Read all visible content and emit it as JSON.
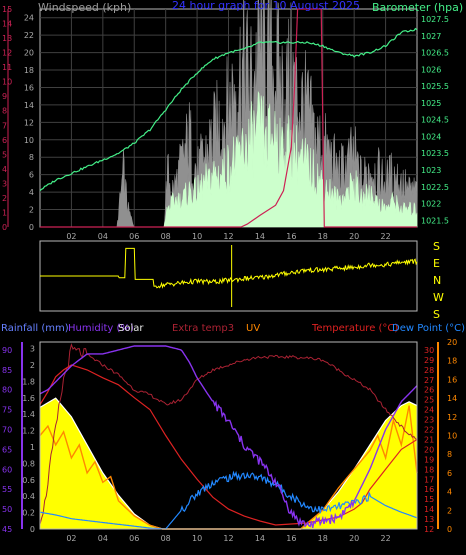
{
  "colors": {
    "background": "#000000",
    "frame": "#b8b8b8",
    "grid": "#404040",
    "wind_gust": "#909090",
    "wind_avg": "#ccffcc",
    "barometer": "#44ee88",
    "wind_dir": "#ffff00",
    "rain_axis": "#cc2255",
    "humidity": "#8833ee",
    "uv": "#ff8800",
    "temperature": "#dd2222",
    "dew_point": "#2288ff",
    "solar_fill": "#ffff00",
    "solar_max": "#ffffff",
    "extra_temp": "#aa2233",
    "title": "#3333ff",
    "tick_text": "#a8a8a8"
  },
  "chart_data": [
    {
      "id": "wind_baro",
      "type": "line",
      "title": "24 hour graph for  10 August 2025",
      "labels": {
        "wind": "Windspeed (kph)",
        "barometer": "Barometer (hpa)"
      },
      "x_ticks": [
        "02",
        "04",
        "06",
        "08",
        "10",
        "12",
        "14",
        "16",
        "18",
        "20",
        "22"
      ],
      "xlim": [
        0,
        24
      ],
      "y_left_ticks": [
        0,
        2,
        4,
        6,
        8,
        10,
        12,
        14,
        16,
        18,
        20,
        22,
        24
      ],
      "y_left_lim": [
        0,
        25
      ],
      "y_rain_ticks": [
        0,
        1,
        2,
        3,
        4,
        5,
        6,
        7,
        8,
        9,
        10,
        11,
        12,
        13,
        14,
        15
      ],
      "y_rain_lim": [
        0,
        15
      ],
      "y_right_ticks": [
        1021.5,
        1022,
        1022.5,
        1023,
        1023.5,
        1024,
        1024.5,
        1025,
        1025.5,
        1026,
        1026.5,
        1027,
        1027.5
      ],
      "y_right_lim": [
        1021.3,
        1027.8
      ],
      "series": [
        {
          "name": "Barometer",
          "axis": "right",
          "x": [
            0,
            1,
            2,
            3,
            4,
            5,
            6,
            7,
            8,
            9,
            10,
            11,
            12,
            13,
            14,
            15,
            16,
            17,
            18,
            19,
            20,
            21,
            22,
            23,
            24
          ],
          "values": [
            1022.4,
            1022.7,
            1022.9,
            1023.1,
            1023.3,
            1023.5,
            1023.8,
            1024.2,
            1024.8,
            1025.4,
            1025.9,
            1026.3,
            1026.5,
            1026.6,
            1026.8,
            1026.8,
            1026.8,
            1026.8,
            1026.7,
            1026.5,
            1026.4,
            1026.5,
            1026.7,
            1027.1,
            1027.2
          ]
        },
        {
          "name": "Gust",
          "axis": "left",
          "x": [
            0,
            4.9,
            5.3,
            5.6,
            6,
            7.9,
            8.1,
            8.5,
            9,
            9.5,
            10,
            10.5,
            11,
            11.5,
            12,
            12.5,
            13,
            13.5,
            14,
            14.5,
            15,
            15.5,
            16,
            16.5,
            17,
            17.5,
            18,
            18.5,
            19,
            19.5,
            20,
            20.5,
            21,
            21.5,
            22,
            22.5,
            23,
            23.5,
            24
          ],
          "values": [
            0,
            0,
            6,
            2,
            0,
            0,
            6,
            4,
            7,
            10,
            6,
            8,
            10,
            12,
            13,
            17,
            18,
            16,
            20,
            19,
            18,
            15,
            17,
            14,
            13,
            10,
            9,
            8,
            6,
            7,
            8,
            5,
            7,
            6,
            5,
            6,
            5,
            4,
            4
          ]
        },
        {
          "name": "Average",
          "axis": "left",
          "x": [
            0,
            7.9,
            8.1,
            8.5,
            9,
            9.5,
            10,
            10.5,
            11,
            11.5,
            12,
            12.5,
            13,
            13.5,
            14,
            14.5,
            15,
            15.5,
            16,
            16.5,
            17,
            17.5,
            18,
            18.5,
            19,
            19.5,
            20,
            20.5,
            21,
            21.5,
            22,
            22.5,
            23,
            23.5,
            24
          ],
          "values": [
            0,
            0,
            2,
            3,
            3,
            4,
            4,
            5,
            6,
            6,
            7,
            8,
            9,
            10,
            11,
            10,
            11,
            9,
            9,
            8,
            7,
            6,
            5,
            4,
            3,
            4,
            5,
            3,
            4,
            3,
            2,
            3,
            2,
            2,
            2
          ]
        },
        {
          "name": "Rainfall",
          "axis": "rain",
          "x": [
            0,
            12.8,
            13.2,
            14,
            15,
            15.5,
            16,
            16.2,
            16.4,
            17.9,
            18.1,
            24
          ],
          "values": [
            0,
            0,
            0.2,
            0.8,
            1.5,
            2.5,
            5.5,
            9.5,
            15,
            15,
            0,
            0
          ]
        }
      ]
    },
    {
      "id": "wind_direction",
      "type": "line",
      "compass_labels": [
        "S",
        "E",
        "N",
        "W",
        "S"
      ],
      "ylim": [
        0,
        360
      ],
      "xlim": [
        0,
        24
      ],
      "series": [
        {
          "name": "Direction",
          "x": [
            0,
            5.0,
            5.01,
            5.4,
            5.41,
            6.0,
            6.01,
            7.2,
            7.21,
            8,
            9,
            10,
            11,
            12,
            13,
            14,
            15,
            16,
            17,
            18,
            19,
            20,
            21,
            22,
            23,
            24
          ],
          "values": [
            180,
            180,
            170,
            170,
            340,
            340,
            160,
            160,
            120,
            130,
            140,
            150,
            145,
            155,
            165,
            170,
            185,
            200,
            215,
            215,
            225,
            230,
            245,
            245,
            260,
            265
          ]
        }
      ]
    },
    {
      "id": "rain_hum_solar_temp",
      "type": "line",
      "labels": {
        "rainfall": "Rainfall (mm)",
        "humidity": "Humidity (%)",
        "solar": "Solar",
        "extra": "Extra temp3",
        "uv": "UV",
        "temperature": "Temperature (°C)",
        "dew": "Dew Point (°C)"
      },
      "x_ticks": [
        "02",
        "04",
        "06",
        "08",
        "10",
        "12",
        "14",
        "16",
        "18",
        "20",
        "22"
      ],
      "xlim": [
        0,
        24
      ],
      "y_rain_ticks": [
        0,
        0.2,
        0.4,
        0.6,
        0.8,
        1,
        1.2,
        1.4,
        1.6,
        1.8,
        2,
        3
      ],
      "y_hum_ticks": [
        45,
        50,
        55,
        60,
        65,
        70,
        75,
        80,
        85,
        90
      ],
      "y_hum_lim": [
        45,
        92
      ],
      "y_temp_ticks": [
        12,
        13,
        14,
        15,
        16,
        17,
        18,
        19,
        20,
        21,
        22,
        23,
        24,
        25,
        26,
        27,
        28,
        29,
        30
      ],
      "y_temp_lim": [
        12,
        30.8
      ],
      "y_dew_ticks": [
        0,
        2,
        4,
        6,
        8,
        10,
        12,
        14,
        16,
        18,
        20
      ],
      "y_dew_lim": [
        0,
        20
      ],
      "series": [
        {
          "name": "Humidity",
          "axis": "hum",
          "x": [
            0,
            0.5,
            1,
            1.5,
            2,
            3,
            4,
            5,
            6,
            7,
            8,
            9,
            9.5,
            10,
            11,
            12,
            13,
            14,
            15,
            16,
            16.5,
            17,
            18,
            19,
            19.5,
            20,
            21,
            22,
            23,
            24
          ],
          "values": [
            79,
            80,
            82,
            84,
            86,
            89,
            89,
            90,
            91,
            91,
            91,
            90,
            87,
            83,
            77,
            72,
            66,
            62,
            57,
            49,
            47,
            46,
            47,
            48,
            50,
            52,
            60,
            70,
            77,
            81
          ]
        },
        {
          "name": "Temperature",
          "axis": "temp",
          "x": [
            0,
            0.5,
            1,
            1.5,
            2,
            3,
            4,
            5,
            6,
            7,
            8,
            9,
            10,
            11,
            12,
            13,
            14,
            15,
            16,
            17,
            18,
            19,
            20,
            20.5,
            21,
            22,
            23,
            24
          ],
          "values": [
            24.5,
            25.8,
            27.3,
            28.0,
            28.5,
            28.0,
            27.2,
            26.5,
            25.2,
            24.0,
            21.4,
            19.0,
            17.0,
            15.2,
            14.0,
            13.3,
            12.8,
            12.4,
            12.5,
            12.6,
            12.9,
            13.2,
            14.0,
            14.6,
            16.0,
            18.0,
            20.0,
            21.0
          ]
        },
        {
          "name": "Dew Point",
          "axis": "dew",
          "x": [
            0,
            1,
            2,
            3,
            4,
            5,
            6,
            7,
            8,
            9,
            10,
            11,
            12,
            13,
            14,
            15,
            16,
            17,
            18,
            19,
            20,
            21,
            22,
            23,
            24
          ],
          "values": [
            1.8,
            1.5,
            1.1,
            0.9,
            0.7,
            0.5,
            0.3,
            0.1,
            0.0,
            2.0,
            3.8,
            5.0,
            5.5,
            5.8,
            5.5,
            4.8,
            3.5,
            2.4,
            2.0,
            2.4,
            2.8,
            3.5,
            2.5,
            1.8,
            1.2
          ]
        },
        {
          "name": "Extra temp3",
          "axis": "temp",
          "x": [
            0,
            0.3,
            0.6,
            1,
            1.5,
            2,
            3,
            4,
            5,
            6,
            7,
            7.5,
            8,
            9,
            10,
            11,
            12,
            13,
            14,
            15,
            16,
            17,
            18,
            19,
            20,
            20.5,
            21,
            21.5,
            22,
            22.5,
            23,
            23.5,
            24
          ],
          "values": [
            13,
            14.5,
            18,
            22,
            27,
            30,
            29.5,
            28.5,
            27.5,
            26,
            25.5,
            25,
            24.5,
            25,
            27,
            28,
            28.5,
            29,
            29.3,
            29.3,
            29.3,
            29.2,
            29.0,
            28.0,
            27.0,
            26.5,
            26,
            25,
            24,
            23.2,
            22.3,
            21.5,
            21
          ]
        },
        {
          "name": "Solar",
          "axis": "solar",
          "x": [
            0,
            1,
            2,
            3,
            4,
            5,
            6,
            7,
            7.8,
            16.6,
            17,
            18,
            19,
            20,
            21,
            22,
            23,
            23.5,
            24
          ],
          "values": [
            0.65,
            0.7,
            0.6,
            0.45,
            0.3,
            0.18,
            0.08,
            0.02,
            0,
            0,
            0.03,
            0.1,
            0.2,
            0.32,
            0.45,
            0.58,
            0.66,
            0.68,
            0.66
          ]
        },
        {
          "name": "UV",
          "axis": "solar",
          "x": [
            0,
            0.5,
            1,
            1.5,
            2,
            2.5,
            3,
            3.5,
            4,
            4.5,
            5,
            6,
            7,
            7.8,
            16.6,
            17,
            18,
            19,
            20,
            21,
            21.5,
            22,
            22.5,
            23,
            23.5,
            24
          ],
          "values": [
            0.5,
            0.55,
            0.45,
            0.52,
            0.38,
            0.45,
            0.3,
            0.36,
            0.25,
            0.28,
            0.15,
            0.07,
            0.02,
            0,
            0,
            0.03,
            0.1,
            0.22,
            0.32,
            0.42,
            0.5,
            0.38,
            0.58,
            0.45,
            0.66,
            0.3
          ]
        }
      ]
    }
  ]
}
